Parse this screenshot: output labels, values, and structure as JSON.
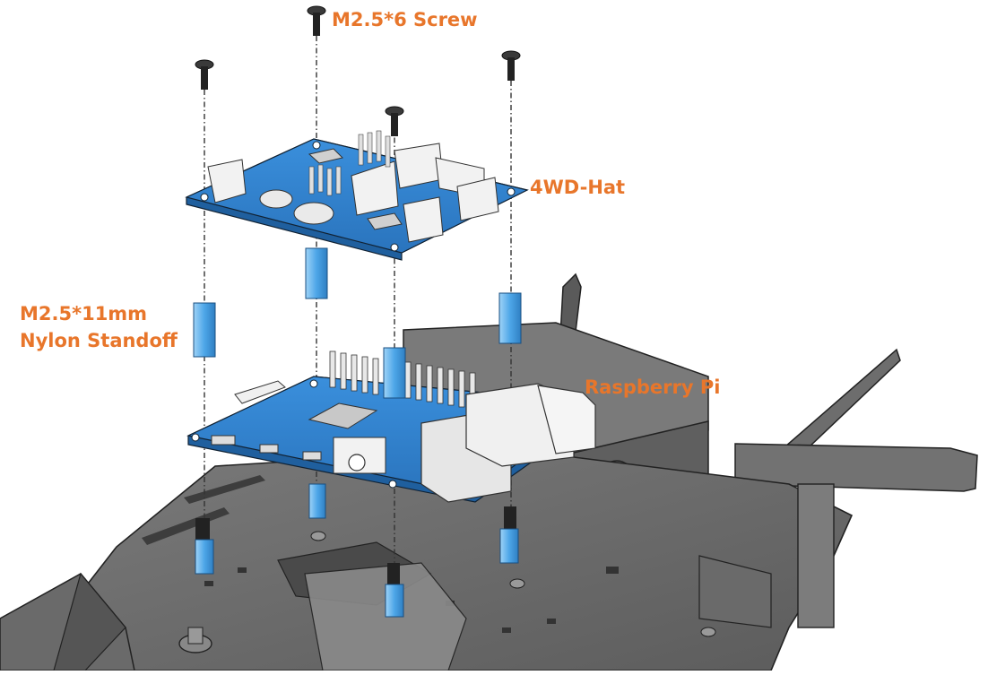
{
  "colors": {
    "label": "#E8762B",
    "pcb": "#2E7FCB",
    "pcb_edge": "#1F5F9E",
    "standoff": "#4DA6E8",
    "chassis": "#6E6E6E",
    "chassis_dark": "#4A4A4A",
    "screw": "#2B2B2B",
    "connector": "#F2F2F2"
  },
  "labels": {
    "screw": "M2.5*6 Screw",
    "hat": "4WD-Hat",
    "standoff_line1": "M2.5*11mm",
    "standoff_line2": "Nylon Standoff",
    "pi": "Raspberry Pi"
  }
}
